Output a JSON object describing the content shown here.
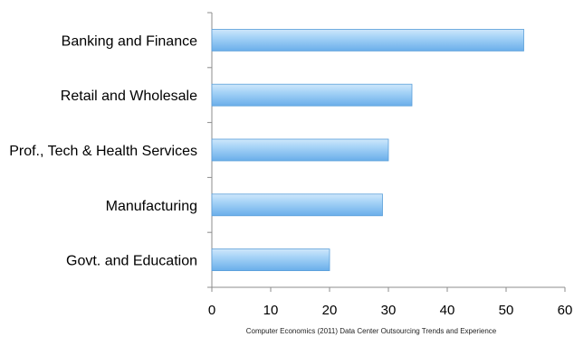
{
  "chart_data": {
    "type": "bar",
    "orientation": "horizontal",
    "categories": [
      "Banking and Finance",
      "Retail and Wholesale",
      "Prof., Tech & Health Services",
      "Manufacturing",
      "Govt. and Education"
    ],
    "values": [
      53,
      34,
      30,
      29,
      20
    ],
    "xlim": [
      0,
      60
    ],
    "xticks": [
      0,
      10,
      20,
      30,
      40,
      50,
      60
    ],
    "grid": false,
    "bar_color": "#8ec5f2",
    "source": "Computer Economics  (2011) Data Center Outsourcing Trends and Experience"
  }
}
